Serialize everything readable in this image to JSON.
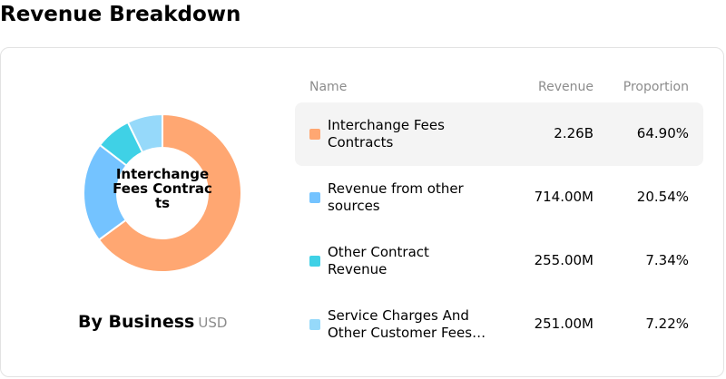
{
  "header": {
    "title": "Revenue Breakdown"
  },
  "chart_data": {
    "type": "pie",
    "center_label": "Interchange Fees Contracts",
    "caption": "By Business",
    "unit": "USD",
    "columns": {
      "name": "Name",
      "revenue": "Revenue",
      "proportion": "Proportion"
    },
    "series": [
      {
        "name": "Interchange Fees Contracts",
        "name_lines": [
          "Interchange Fees",
          "Contracts"
        ],
        "revenue": "2.26B",
        "proportion": "64.90%",
        "value": 64.9,
        "color": "#FFA772",
        "highlighted": true
      },
      {
        "name": "Revenue from other sources",
        "name_lines": [
          "Revenue from other",
          "sources"
        ],
        "revenue": "714.00M",
        "proportion": "20.54%",
        "value": 20.54,
        "color": "#74C3FF",
        "highlighted": false
      },
      {
        "name": "Other Contract Revenue",
        "name_lines": [
          "Other Contract",
          "Revenue"
        ],
        "revenue": "255.00M",
        "proportion": "7.34%",
        "value": 7.34,
        "color": "#3FD1E6",
        "highlighted": false
      },
      {
        "name": "Service Charges And Other Customer Fees",
        "name_lines": [
          "Service Charges And",
          "Other Customer Fees…"
        ],
        "revenue": "251.00M",
        "proportion": "7.22%",
        "value": 7.22,
        "color": "#96D9FA",
        "highlighted": false
      }
    ]
  }
}
